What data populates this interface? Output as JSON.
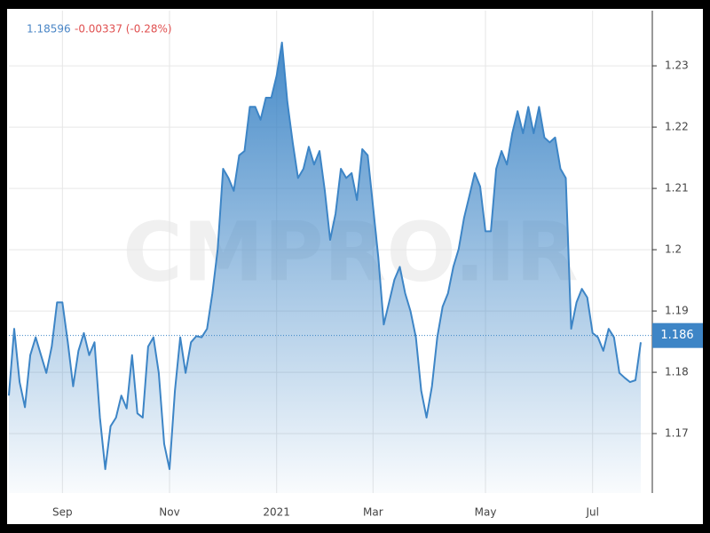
{
  "chart_data": {
    "type": "area",
    "price": "1.18596",
    "change": "-0.00337 (-0.28%)",
    "watermark": "CMPRO.IR",
    "current": 1.186,
    "color": "#3d85c6",
    "grid": true,
    "categories": [
      null,
      null,
      null,
      null,
      null,
      null,
      null,
      null,
      null,
      null,
      "Sep",
      null,
      null,
      null,
      null,
      null,
      null,
      null,
      null,
      null,
      null,
      null,
      null,
      null,
      null,
      null,
      null,
      null,
      null,
      null,
      "Nov",
      null,
      null,
      null,
      null,
      null,
      null,
      null,
      null,
      null,
      null,
      null,
      null,
      null,
      null,
      null,
      null,
      null,
      null,
      null,
      "2021",
      null,
      null,
      null,
      null,
      null,
      null,
      null,
      null,
      null,
      null,
      null,
      null,
      null,
      null,
      null,
      null,
      null,
      "Mar",
      null,
      null,
      null,
      null,
      null,
      null,
      null,
      null,
      null,
      null,
      null,
      null,
      null,
      null,
      null,
      null,
      null,
      null,
      null,
      null,
      "May",
      null,
      null,
      null,
      null,
      null,
      null,
      null,
      null,
      null,
      null,
      null,
      null,
      null,
      null,
      null,
      null,
      null,
      null,
      null,
      "Jul",
      null,
      null,
      null,
      null,
      null,
      null,
      null,
      null,
      null
    ],
    "values": [
      1.1762,
      1.1871,
      1.1784,
      1.1743,
      1.1828,
      1.1857,
      1.1828,
      1.1799,
      1.1842,
      1.1914,
      1.1914,
      1.1849,
      1.1777,
      1.1835,
      1.1864,
      1.1828,
      1.1849,
      1.1726,
      1.1642,
      1.1712,
      1.1726,
      1.1762,
      1.1741,
      1.1828,
      1.1733,
      1.1726,
      1.1842,
      1.1857,
      1.1799,
      1.1683,
      1.1642,
      1.177,
      1.1857,
      1.1799,
      1.1849,
      1.1859,
      1.1857,
      1.1871,
      1.1929,
      1.2001,
      1.2132,
      1.2117,
      1.2096,
      1.2154,
      1.2161,
      1.2233,
      1.2233,
      1.2212,
      1.2248,
      1.2248,
      1.2284,
      1.2338,
      1.2241,
      1.2175,
      1.2117,
      1.2132,
      1.2168,
      1.2139,
      1.2161,
      1.2096,
      1.2016,
      1.2059,
      1.2132,
      1.2117,
      1.2125,
      1.2081,
      1.2164,
      1.2154,
      1.2071,
      1.1987,
      1.1878,
      1.1914,
      1.1951,
      1.1972,
      1.1929,
      1.19,
      1.1857,
      1.177,
      1.1726,
      1.1777,
      1.1857,
      1.1907,
      1.1929,
      1.1972,
      1.2001,
      1.2052,
      1.2088,
      1.2125,
      1.2103,
      1.203,
      1.203,
      1.2132,
      1.2161,
      1.2139,
      1.219,
      1.2226,
      1.219,
      1.2233,
      1.219,
      1.2233,
      1.2183,
      1.2175,
      1.2183,
      1.2132,
      1.2117,
      1.1871,
      1.1914,
      1.1936,
      1.1922,
      1.1864,
      1.1857,
      1.1835,
      1.1871,
      1.1857,
      1.1799,
      1.1791,
      1.1784,
      1.1787,
      1.1849
    ],
    "ylim": [
      1.1603,
      1.239
    ],
    "yticks": [
      1.17,
      1.18,
      1.19,
      1.2,
      1.21,
      1.22,
      1.23
    ]
  }
}
